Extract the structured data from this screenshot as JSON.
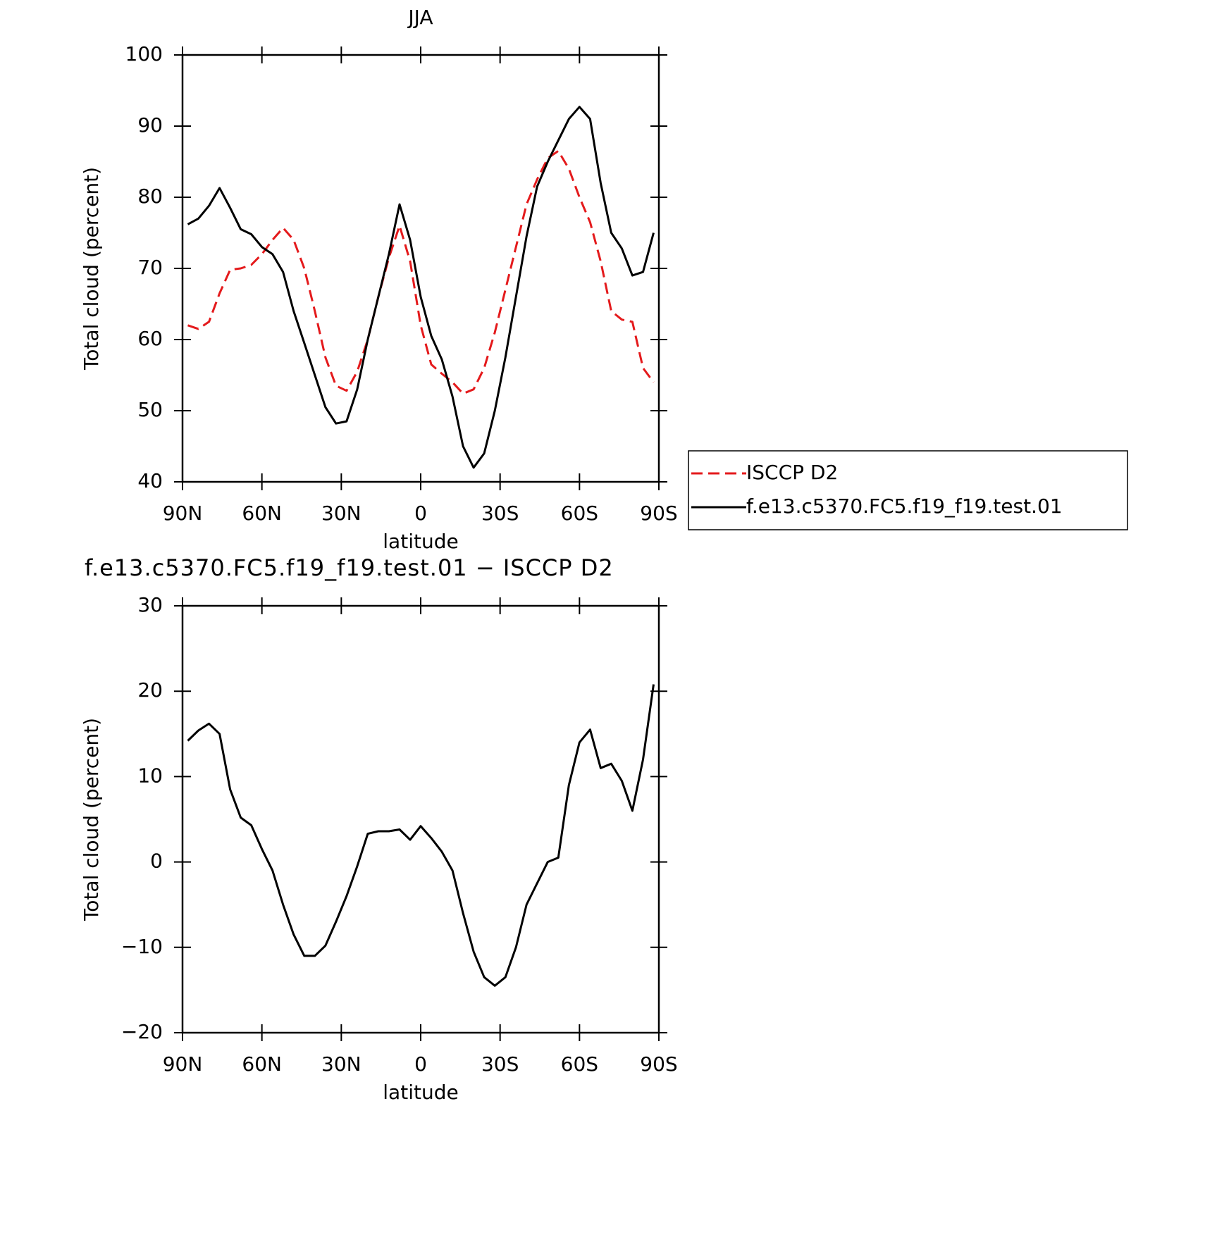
{
  "chart_data": [
    {
      "type": "line",
      "title": "JJA",
      "ylabel": "Total cloud (percent)",
      "xlabel": "latitude",
      "x": [
        88,
        84,
        80,
        76,
        72,
        68,
        64,
        60,
        56,
        52,
        48,
        44,
        40,
        36,
        32,
        28,
        24,
        20,
        16,
        12,
        8,
        4,
        0,
        -4,
        -8,
        -12,
        -16,
        -20,
        -24,
        -28,
        -32,
        -36,
        -40,
        -44,
        -48,
        -52,
        -56,
        -60,
        -64,
        -68,
        -72,
        -76,
        -80,
        -84,
        -88
      ],
      "xlim": [
        90,
        -90
      ],
      "xticks": [
        {
          "value": 90,
          "label": "90N"
        },
        {
          "value": 60,
          "label": "60N"
        },
        {
          "value": 30,
          "label": "30N"
        },
        0,
        {
          "value": -30,
          "label": "30S"
        },
        {
          "value": -60,
          "label": "60S"
        },
        {
          "value": -90,
          "label": "90S"
        }
      ],
      "ylim": [
        40,
        100
      ],
      "yticks": [
        40,
        50,
        60,
        70,
        80,
        90,
        100
      ],
      "legend": "right",
      "series": [
        {
          "name": "ISCCP D2",
          "color": "#e41a1c",
          "dash": true,
          "values": [
            62,
            61.5,
            62.5,
            66.5,
            69.8,
            70,
            70.5,
            72,
            74,
            75.7,
            74,
            70,
            64,
            57.5,
            53.5,
            52.8,
            55.5,
            60,
            66,
            71.5,
            76,
            71,
            62,
            56.5,
            55.2,
            54,
            52.4,
            53,
            56,
            61,
            67,
            73,
            79,
            82.5,
            85.5,
            86.5,
            84,
            80,
            76.5,
            71,
            64,
            62.8,
            62.5,
            56,
            54
          ]
        },
        {
          "name": "f.e13.c5370.FC5.f19_f19.test.01",
          "color": "#000000",
          "dash": false,
          "values": [
            76.2,
            77,
            78.8,
            81.3,
            78.5,
            75.5,
            74.8,
            73,
            72,
            69.5,
            64,
            59.5,
            55,
            50.5,
            48.2,
            48.5,
            53,
            60,
            66,
            72,
            79,
            74,
            66,
            60.5,
            57.2,
            52,
            45,
            42,
            44,
            50,
            57.5,
            66,
            74.5,
            81.5,
            85,
            88,
            91,
            92.7,
            91,
            82,
            75,
            72.8,
            69,
            69.5,
            75
          ]
        }
      ]
    },
    {
      "type": "line",
      "title": "f.e13.c5370.FC5.f19_f19.test.01 − ISCCP D2",
      "ylabel": "Total cloud (percent)",
      "xlabel": "latitude",
      "x": [
        88,
        84,
        80,
        76,
        72,
        68,
        64,
        60,
        56,
        52,
        48,
        44,
        40,
        36,
        32,
        28,
        24,
        20,
        16,
        12,
        8,
        4,
        0,
        -4,
        -8,
        -12,
        -16,
        -20,
        -24,
        -28,
        -32,
        -36,
        -40,
        -44,
        -48,
        -52,
        -56,
        -60,
        -64,
        -68,
        -72,
        -76,
        -80,
        -84,
        -88
      ],
      "xlim": [
        90,
        -90
      ],
      "xticks": [
        {
          "value": 90,
          "label": "90N"
        },
        {
          "value": 60,
          "label": "60N"
        },
        {
          "value": 30,
          "label": "30N"
        },
        0,
        {
          "value": -30,
          "label": "30S"
        },
        {
          "value": -60,
          "label": "60S"
        },
        {
          "value": -90,
          "label": "90S"
        }
      ],
      "ylim": [
        -20,
        30
      ],
      "yticks": [
        {
          "value": -20,
          "label": "−20"
        },
        {
          "value": -10,
          "label": "−10"
        },
        0,
        10,
        20,
        30
      ],
      "series": [
        {
          "color": "#000000",
          "dash": false,
          "values": [
            14.2,
            15.4,
            16.2,
            15,
            8.5,
            5.2,
            4.3,
            1.5,
            -1,
            -5,
            -8.5,
            -11,
            -11,
            -9.8,
            -7,
            -4,
            -0.5,
            3.3,
            3.6,
            3.6,
            3.8,
            2.6,
            4.2,
            2.8,
            1.2,
            -1,
            -6,
            -10.5,
            -13.5,
            -14.5,
            -13.5,
            -10,
            -5,
            -2.5,
            0,
            0.5,
            9,
            14,
            15.5,
            11,
            11.5,
            9.5,
            6,
            12,
            20.8
          ]
        }
      ]
    }
  ]
}
